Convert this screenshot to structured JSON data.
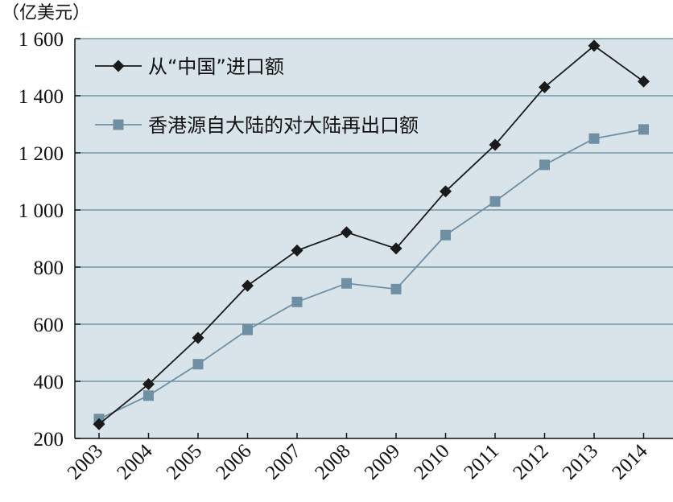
{
  "chart_data": {
    "type": "line",
    "unit_label": "（亿美元）",
    "categories": [
      "2003",
      "2004",
      "2005",
      "2006",
      "2007",
      "2008",
      "2009",
      "2010",
      "2011",
      "2012",
      "2013",
      "2014"
    ],
    "ylim": [
      200,
      1600
    ],
    "yticks": [
      200,
      400,
      600,
      800,
      1000,
      1200,
      1400,
      1600
    ],
    "ytick_labels": [
      "200",
      "400",
      "600",
      "800",
      "1 000",
      "1 200",
      "1 400",
      "1 600"
    ],
    "grid": true,
    "legend_position": "top-left",
    "background_color": "#d8e3ea",
    "series": [
      {
        "name": "从“中国”进口额",
        "marker": "diamond",
        "color": "#1a1a1a",
        "values": [
          250,
          390,
          552,
          735,
          858,
          922,
          865,
          1065,
          1228,
          1430,
          1575,
          1450
        ]
      },
      {
        "name": "香港源自大陆的对大陆再出口额",
        "marker": "square",
        "color": "#6f8fa3",
        "values": [
          268,
          350,
          460,
          580,
          678,
          743,
          723,
          912,
          1030,
          1158,
          1250,
          1282
        ]
      }
    ]
  }
}
